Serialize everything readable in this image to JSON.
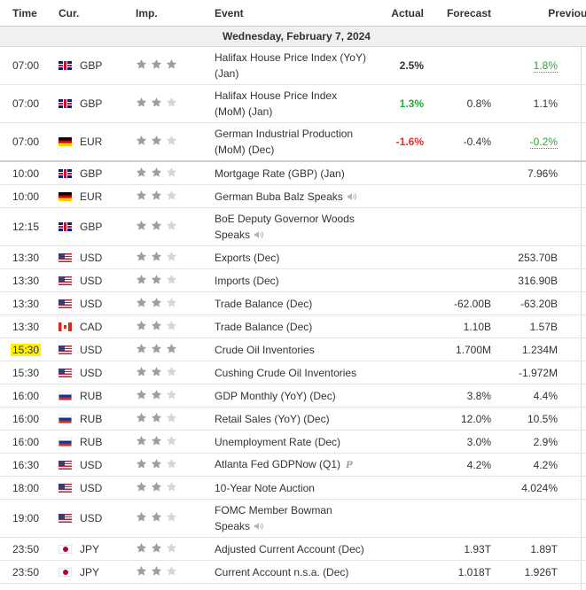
{
  "headers": {
    "time": "Time",
    "currency": "Cur.",
    "importance": "Imp.",
    "event": "Event",
    "actual": "Actual",
    "forecast": "Forecast",
    "previous": "Previous"
  },
  "date_label": "Wednesday, February 7, 2024",
  "colors": {
    "star_active": "#9e9e9e",
    "star_inactive": "#d6d6d6",
    "positive": "#2aa836",
    "negative": "#e52d2d",
    "highlight": "#fff200"
  },
  "events": [
    {
      "time": "07:00",
      "flag": "gb",
      "currency": "GBP",
      "stars": 3,
      "name": "Halifax House Price Index (YoY) (Jan)",
      "actual": "2.5%",
      "actual_style": "bold",
      "forecast": "",
      "previous": "1.8%",
      "previous_style": "green-underline"
    },
    {
      "time": "07:00",
      "flag": "gb",
      "currency": "GBP",
      "stars": 2,
      "name": "Halifax House Price Index (MoM) (Jan)",
      "actual": "1.3%",
      "actual_style": "green",
      "forecast": "0.8%",
      "previous": "1.1%",
      "previous_style": ""
    },
    {
      "time": "07:00",
      "flag": "de",
      "currency": "EUR",
      "stars": 2,
      "name": "German Industrial Production (MoM) (Dec)",
      "actual": "-1.6%",
      "actual_style": "red",
      "forecast": "-0.4%",
      "previous": "-0.2%",
      "previous_style": "green-underline"
    },
    {
      "time": "10:00",
      "flag": "gb",
      "currency": "GBP",
      "stars": 2,
      "name": "Mortgage Rate (GBP) (Jan)",
      "actual": "",
      "actual_style": "",
      "forecast": "",
      "previous": "7.96%",
      "previous_style": "",
      "separator": true
    },
    {
      "time": "10:00",
      "flag": "de",
      "currency": "EUR",
      "stars": 2,
      "name": "German Buba Balz Speaks",
      "icon": "speaker-icon",
      "actual": "",
      "actual_style": "",
      "forecast": "",
      "previous": "",
      "previous_style": ""
    },
    {
      "time": "12:15",
      "flag": "gb",
      "currency": "GBP",
      "stars": 2,
      "name": "BoE Deputy Governor Woods Speaks",
      "icon": "speaker-icon",
      "actual": "",
      "actual_style": "",
      "forecast": "",
      "previous": "",
      "previous_style": ""
    },
    {
      "time": "13:30",
      "flag": "us",
      "currency": "USD",
      "stars": 2,
      "name": "Exports (Dec)",
      "actual": "",
      "actual_style": "",
      "forecast": "",
      "previous": "253.70B",
      "previous_style": ""
    },
    {
      "time": "13:30",
      "flag": "us",
      "currency": "USD",
      "stars": 2,
      "name": "Imports (Dec)",
      "actual": "",
      "actual_style": "",
      "forecast": "",
      "previous": "316.90B",
      "previous_style": ""
    },
    {
      "time": "13:30",
      "flag": "us",
      "currency": "USD",
      "stars": 2,
      "name": "Trade Balance (Dec)",
      "actual": "",
      "actual_style": "",
      "forecast": "-62.00B",
      "previous": "-63.20B",
      "previous_style": ""
    },
    {
      "time": "13:30",
      "flag": "ca",
      "currency": "CAD",
      "stars": 2,
      "name": "Trade Balance (Dec)",
      "actual": "",
      "actual_style": "",
      "forecast": "1.10B",
      "previous": "1.57B",
      "previous_style": ""
    },
    {
      "time": "15:30",
      "flag": "us",
      "currency": "USD",
      "stars": 3,
      "name": "Crude Oil Inventories",
      "actual": "",
      "actual_style": "",
      "forecast": "1.700M",
      "previous": "1.234M",
      "previous_style": "",
      "highlight": true
    },
    {
      "time": "15:30",
      "flag": "us",
      "currency": "USD",
      "stars": 2,
      "name": "Cushing Crude Oil Inventories",
      "actual": "",
      "actual_style": "",
      "forecast": "",
      "previous": "-1.972M",
      "previous_style": ""
    },
    {
      "time": "16:00",
      "flag": "ru",
      "currency": "RUB",
      "stars": 2,
      "name": "GDP Monthly (YoY) (Dec)",
      "actual": "",
      "actual_style": "",
      "forecast": "3.8%",
      "previous": "4.4%",
      "previous_style": ""
    },
    {
      "time": "16:00",
      "flag": "ru",
      "currency": "RUB",
      "stars": 2,
      "name": "Retail Sales (YoY) (Dec)",
      "actual": "",
      "actual_style": "",
      "forecast": "12.0%",
      "previous": "10.5%",
      "previous_style": ""
    },
    {
      "time": "16:00",
      "flag": "ru",
      "currency": "RUB",
      "stars": 2,
      "name": "Unemployment Rate (Dec)",
      "actual": "",
      "actual_style": "",
      "forecast": "3.0%",
      "previous": "2.9%",
      "previous_style": ""
    },
    {
      "time": "16:30",
      "flag": "us",
      "currency": "USD",
      "stars": 2,
      "name": "Atlanta Fed GDPNow (Q1)",
      "icon": "preliminary-icon",
      "actual": "",
      "actual_style": "",
      "forecast": "4.2%",
      "previous": "4.2%",
      "previous_style": ""
    },
    {
      "time": "18:00",
      "flag": "us",
      "currency": "USD",
      "stars": 2,
      "name": "10-Year Note Auction",
      "actual": "",
      "actual_style": "",
      "forecast": "",
      "previous": "4.024%",
      "previous_style": ""
    },
    {
      "time": "19:00",
      "flag": "us",
      "currency": "USD",
      "stars": 2,
      "name": "FOMC Member Bowman Speaks",
      "icon": "speaker-icon",
      "actual": "",
      "actual_style": "",
      "forecast": "",
      "previous": "",
      "previous_style": ""
    },
    {
      "time": "23:50",
      "flag": "jp",
      "currency": "JPY",
      "stars": 2,
      "name": "Adjusted Current Account (Dec)",
      "actual": "",
      "actual_style": "",
      "forecast": "1.93T",
      "previous": "1.89T",
      "previous_style": ""
    },
    {
      "time": "23:50",
      "flag": "jp",
      "currency": "JPY",
      "stars": 2,
      "name": "Current Account n.s.a. (Dec)",
      "actual": "",
      "actual_style": "",
      "forecast": "1.018T",
      "previous": "1.926T",
      "previous_style": ""
    }
  ]
}
